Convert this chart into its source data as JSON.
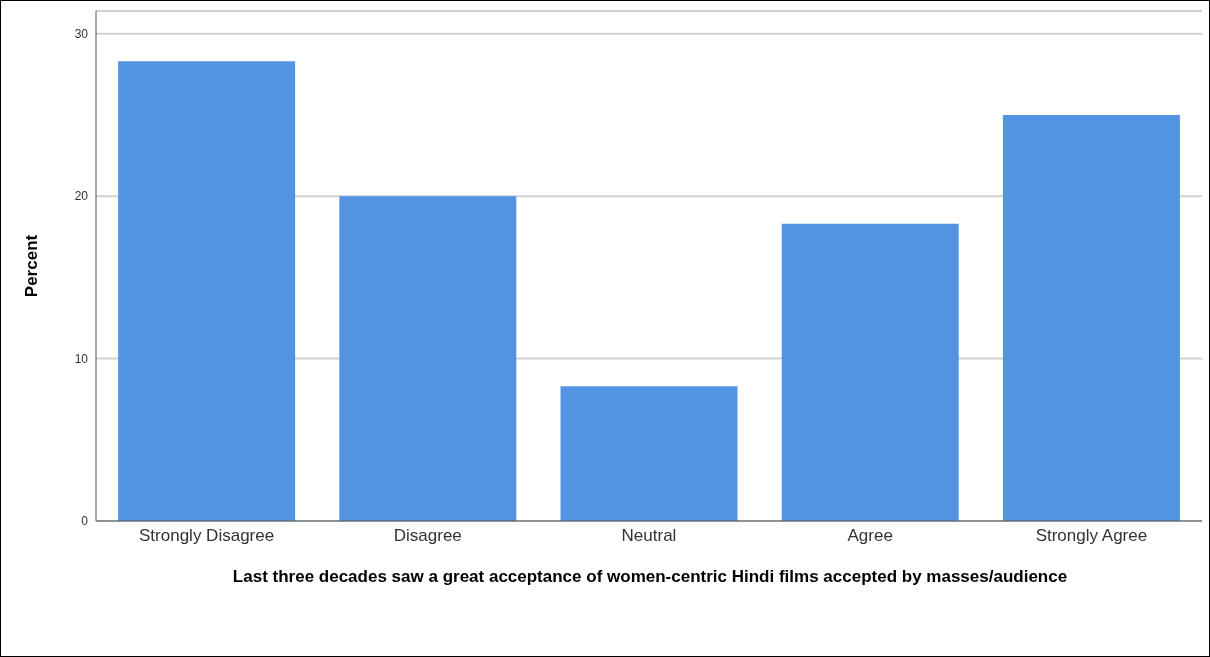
{
  "chart_data": {
    "type": "bar",
    "categories": [
      "Strongly Disagree",
      "Disagree",
      "Neutral",
      "Agree",
      "Strongly Agree"
    ],
    "values": [
      28.3,
      20.0,
      8.3,
      18.3,
      25.0
    ],
    "color": "#5294e2",
    "xlabel": "Last three decades saw a great acceptance of women-centric Hindi films accepted by masses/audience",
    "ylabel": "Percent",
    "ylim": [
      0,
      31.4
    ],
    "yticks": [
      0,
      10,
      20,
      30
    ],
    "grid": "y"
  }
}
